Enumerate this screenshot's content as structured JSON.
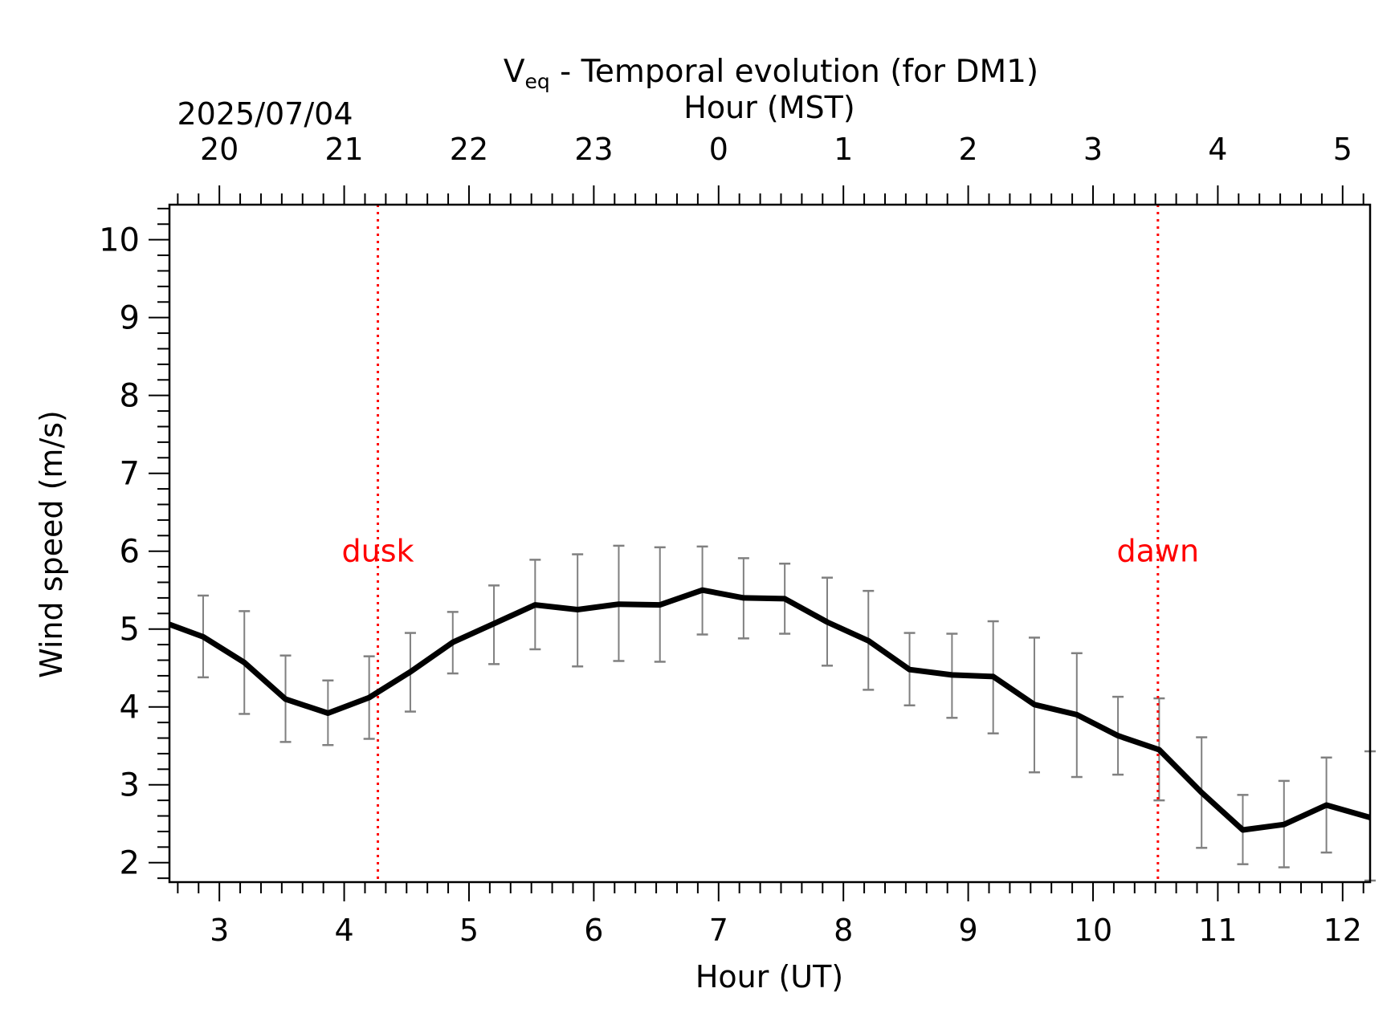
{
  "colors": {
    "line": "#000000",
    "errorbar": "#808080",
    "event": "#ff0000",
    "frame": "#000000"
  },
  "chart_data": {
    "type": "line",
    "title": {
      "main": "V",
      "subscript": "eq",
      "rest": " - Temporal evolution (for DM1)"
    },
    "top_axis": {
      "label": "Hour (MST)",
      "date": "2025/07/04",
      "ticks": [
        {
          "ut": 3,
          "label": "20"
        },
        {
          "ut": 4,
          "label": "21"
        },
        {
          "ut": 5,
          "label": "22"
        },
        {
          "ut": 6,
          "label": "23"
        },
        {
          "ut": 7,
          "label": "0"
        },
        {
          "ut": 8,
          "label": "1"
        },
        {
          "ut": 9,
          "label": "2"
        },
        {
          "ut": 10,
          "label": "3"
        },
        {
          "ut": 11,
          "label": "4"
        },
        {
          "ut": 12,
          "label": "5"
        }
      ]
    },
    "xlabel": "Hour (UT)",
    "ylabel": "Wind speed (m/s)",
    "xlim": [
      2.6,
      12.22
    ],
    "ylim": [
      1.75,
      10.45
    ],
    "xticks": [
      "3",
      "4",
      "5",
      "6",
      "7",
      "8",
      "9",
      "10",
      "11",
      "12"
    ],
    "yticks": [
      "2",
      "3",
      "4",
      "5",
      "6",
      "7",
      "8",
      "9",
      "10"
    ],
    "grid": false,
    "events": [
      {
        "x": 4.27,
        "label": "dusk"
      },
      {
        "x": 10.52,
        "label": "dawn"
      }
    ],
    "series": [
      {
        "x": [
          2.6,
          2.87,
          3.2,
          3.53,
          3.87,
          4.2,
          4.53,
          4.87,
          5.2,
          5.53,
          5.87,
          6.2,
          6.53,
          6.87,
          7.2,
          7.53,
          7.87,
          8.2,
          8.53,
          8.87,
          9.2,
          9.53,
          9.87,
          10.2,
          10.53,
          10.87,
          11.2,
          11.53,
          11.87,
          12.22
        ],
        "y": [
          5.06,
          4.9,
          4.57,
          4.1,
          3.92,
          4.12,
          4.45,
          4.83,
          5.07,
          5.31,
          5.25,
          5.32,
          5.31,
          5.5,
          5.4,
          5.39,
          5.09,
          4.85,
          4.48,
          4.41,
          4.39,
          4.03,
          3.9,
          3.63,
          3.45,
          2.9,
          2.42,
          2.49,
          2.74,
          2.58
        ],
        "yerr_low": [
          null,
          4.38,
          3.91,
          3.55,
          3.51,
          3.59,
          3.94,
          4.43,
          4.55,
          4.74,
          4.52,
          4.59,
          4.58,
          4.93,
          4.88,
          4.94,
          4.53,
          4.22,
          4.02,
          3.86,
          3.66,
          3.16,
          3.1,
          3.13,
          2.8,
          2.19,
          1.98,
          1.94,
          2.13,
          1.77
        ],
        "yerr_high": [
          null,
          5.43,
          5.23,
          4.66,
          4.34,
          4.65,
          4.95,
          5.22,
          5.56,
          5.89,
          5.96,
          6.07,
          6.05,
          6.06,
          5.91,
          5.84,
          5.66,
          5.49,
          4.95,
          4.94,
          5.1,
          4.89,
          4.69,
          4.13,
          4.11,
          3.61,
          2.87,
          3.05,
          3.35,
          3.43
        ]
      }
    ]
  }
}
